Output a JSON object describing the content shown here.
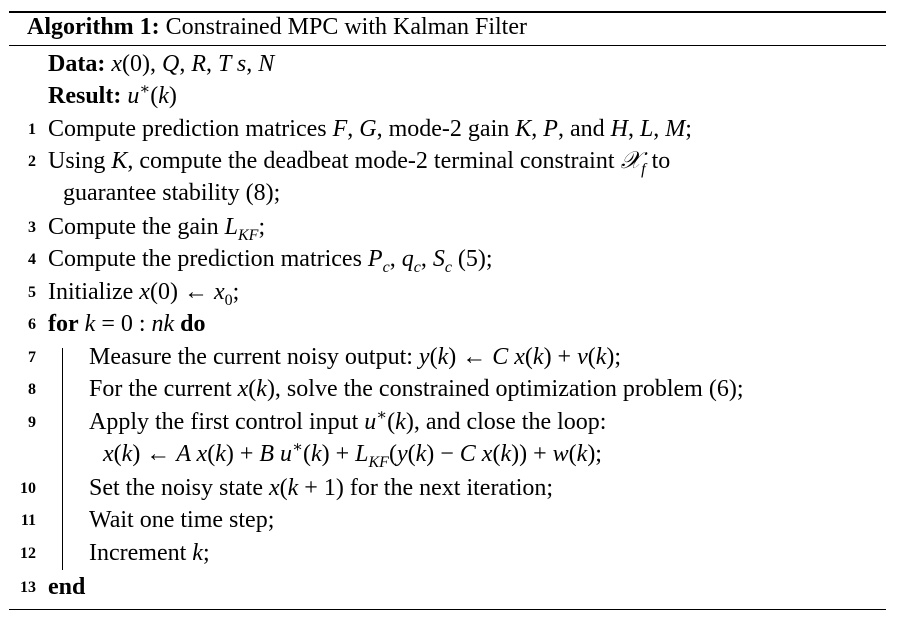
{
  "algorithm": {
    "caption_label": "Algorithm 1:",
    "caption_title": "Constrained MPC with Kalman Filter",
    "data_label": "Data:",
    "result_label": "Result:",
    "lines": [
      {
        "num": "1",
        "text": "Compute prediction matrices"
      },
      {
        "num": "2",
        "text": "Using"
      },
      {
        "num": "3",
        "text": "Compute the gain"
      },
      {
        "num": "4",
        "text": "Compute the prediction matrices"
      },
      {
        "num": "5",
        "text": "Initialize"
      },
      {
        "num": "6",
        "text": "for"
      },
      {
        "num": "7",
        "text": "Measure the current noisy output:"
      },
      {
        "num": "8",
        "text": "For the current"
      },
      {
        "num": "9",
        "text": "Apply the first control input"
      },
      {
        "num": "10",
        "text": "Set the noisy state"
      },
      {
        "num": "11",
        "text": "Wait one time step;"
      },
      {
        "num": "12",
        "text": "Increment"
      },
      {
        "num": "13",
        "text": "end"
      }
    ]
  }
}
